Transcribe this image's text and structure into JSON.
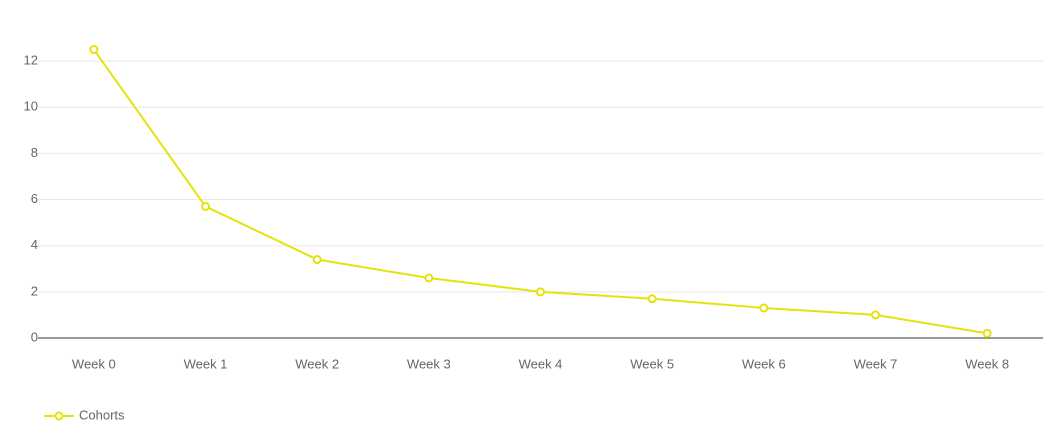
{
  "chart_data": {
    "type": "line",
    "categories": [
      "Week 0",
      "Week 1",
      "Week 2",
      "Week 3",
      "Week 4",
      "Week 5",
      "Week 6",
      "Week 7",
      "Week 8"
    ],
    "series": [
      {
        "name": "Cohorts",
        "color": "#e6e20e",
        "values": [
          12.5,
          5.7,
          3.4,
          2.6,
          2.0,
          1.7,
          1.3,
          1.0,
          0.2
        ]
      }
    ],
    "ylim": [
      0,
      13
    ],
    "yticks": [
      0,
      2,
      4,
      6,
      8,
      10,
      12
    ],
    "grid": true,
    "legend": "bottom-left"
  }
}
